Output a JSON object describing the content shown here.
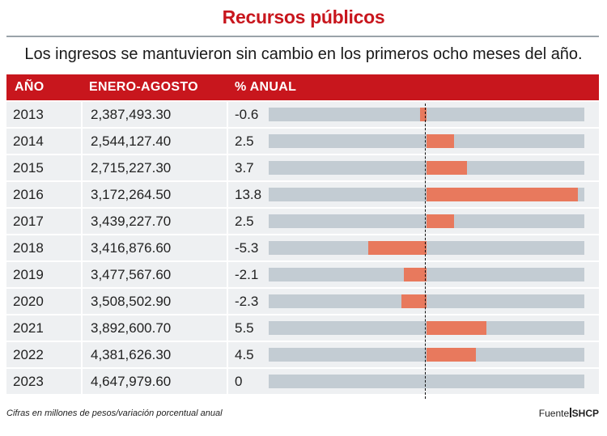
{
  "header": {
    "title": "Recursos públicos",
    "subtitle": "Los ingresos se mantuvieron sin cambio en los primeros ocho meses del año."
  },
  "table": {
    "columns": [
      "AÑO",
      "ENERO-AGOSTO",
      "% ANUAL"
    ],
    "rows": [
      {
        "year": "2013",
        "amount": "2,387,493.30",
        "pct": "-0.6"
      },
      {
        "year": "2014",
        "amount": "2,544,127.40",
        "pct": "2.5"
      },
      {
        "year": "2015",
        "amount": "2,715,227.30",
        "pct": "3.7"
      },
      {
        "year": "2016",
        "amount": "3,172,264.50",
        "pct": "13.8"
      },
      {
        "year": "2017",
        "amount": "3,439,227.70",
        "pct": "2.5"
      },
      {
        "year": "2018",
        "amount": "3,416,876.60",
        "pct": "-5.3"
      },
      {
        "year": "2019",
        "amount": "3,477,567.60",
        "pct": "-2.1"
      },
      {
        "year": "2020",
        "amount": "3,508,502.90",
        "pct": "-2.3"
      },
      {
        "year": "2021",
        "amount": "3,892,600.70",
        "pct": "5.5"
      },
      {
        "year": "2022",
        "amount": "4,381,626.30",
        "pct": "4.5"
      },
      {
        "year": "2023",
        "amount": "4,647,979.60",
        "pct": "0"
      }
    ]
  },
  "chart_data": {
    "type": "bar",
    "categories": [
      "2013",
      "2014",
      "2015",
      "2016",
      "2017",
      "2018",
      "2019",
      "2020",
      "2021",
      "2022",
      "2023"
    ],
    "values": [
      -0.6,
      2.5,
      3.7,
      13.8,
      2.5,
      -5.3,
      -2.1,
      -2.3,
      5.5,
      4.5,
      0
    ],
    "xlim": [
      -14.4,
      14.4
    ],
    "orientation": "horizontal",
    "zero_line": "dashed"
  },
  "footer": {
    "note": "Cifras en millones de pesos/variación porcentual anual",
    "source_label": "Fuente",
    "source_value": "SHCP"
  },
  "colors": {
    "accent": "#c8161d",
    "bar_positive_negative": "#e8795d",
    "bar_track": "#c3ccd3",
    "row_bg": "#eef0f2"
  }
}
